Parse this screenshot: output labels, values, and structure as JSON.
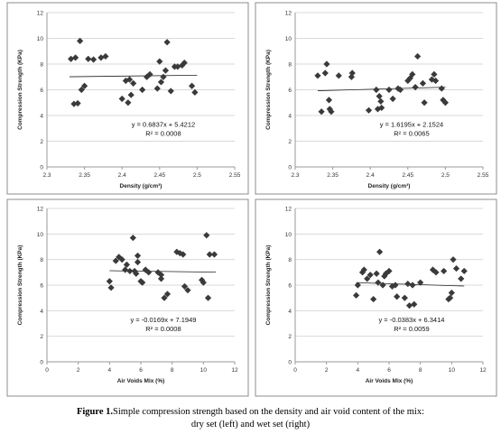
{
  "figure": {
    "caption_label": "Figure 1.",
    "caption_text": "Simple compression strength based on the density and air void content of the mix:",
    "caption_line2": "dry set (left) and wet set (right)"
  },
  "style": {
    "marker_color": "#3a3a3a",
    "trend_color": "#222222",
    "grid_color": "#d9d9d9",
    "border_color": "#8c8c8c"
  },
  "chart_data": [
    {
      "type": "scatter",
      "title": "",
      "xlabel": "Density (g/cm³)",
      "ylabel": "Compression Strength (KPa)",
      "xlim": [
        2.3,
        2.55
      ],
      "ylim": [
        0,
        12
      ],
      "xticks": [
        "2.3",
        "2.35",
        "2.4",
        "2.45",
        "2.5",
        "2.55"
      ],
      "yticks": [
        "0",
        "2",
        "4",
        "6",
        "8",
        "10",
        "12"
      ],
      "grid": true,
      "trend": {
        "slope": 0.6837,
        "intercept": 5.4212,
        "x_range": [
          2.33,
          2.5
        ]
      },
      "equation": "y = 0.6837x + 5.4212",
      "r2": "R² = 0.0008",
      "x": [
        2.332,
        2.336,
        2.338,
        2.341,
        2.344,
        2.346,
        2.35,
        2.355,
        2.362,
        2.372,
        2.378,
        2.4,
        2.405,
        2.408,
        2.41,
        2.412,
        2.415,
        2.427,
        2.433,
        2.437,
        2.447,
        2.45,
        2.452,
        2.455,
        2.458,
        2.46,
        2.465,
        2.47,
        2.474,
        2.48,
        2.483,
        2.493,
        2.497
      ],
      "y": [
        8.4,
        4.9,
        8.5,
        4.95,
        9.8,
        6.0,
        6.3,
        8.4,
        8.35,
        8.5,
        8.6,
        5.3,
        6.7,
        5.0,
        6.8,
        5.6,
        6.5,
        6.0,
        7.0,
        7.2,
        6.1,
        8.2,
        6.6,
        7.0,
        7.5,
        9.7,
        5.9,
        7.8,
        7.8,
        7.9,
        8.1,
        6.3,
        5.8
      ]
    },
    {
      "type": "scatter",
      "title": "",
      "xlabel": "Density (g/cm³)",
      "ylabel": "Compression Strength (KPa)",
      "xlim": [
        2.3,
        2.55
      ],
      "ylim": [
        0,
        12
      ],
      "xticks": [
        "2.3",
        "2.35",
        "2.4",
        "2.45",
        "2.5",
        "2.55"
      ],
      "yticks": [
        "0",
        "2",
        "4",
        "6",
        "8",
        "10",
        "12"
      ],
      "grid": true,
      "trend": {
        "slope": 1.6195,
        "intercept": 2.1524,
        "x_range": [
          2.33,
          2.5
        ]
      },
      "equation": "y = 1.6195x + 2.1524",
      "r2": "R² = 0.0065",
      "x": [
        2.33,
        2.335,
        2.34,
        2.342,
        2.345,
        2.346,
        2.348,
        2.358,
        2.375,
        2.376,
        2.398,
        2.408,
        2.41,
        2.412,
        2.414,
        2.415,
        2.425,
        2.43,
        2.437,
        2.44,
        2.45,
        2.453,
        2.456,
        2.46,
        2.463,
        2.47,
        2.472,
        2.482,
        2.485,
        2.487,
        2.495,
        2.497,
        2.5
      ],
      "y": [
        7.1,
        4.3,
        7.3,
        8.0,
        5.2,
        4.5,
        4.3,
        7.1,
        7.0,
        7.3,
        4.4,
        6.0,
        4.5,
        5.5,
        5.1,
        4.6,
        6.0,
        5.3,
        6.1,
        6.0,
        6.7,
        6.9,
        7.2,
        6.2,
        8.6,
        6.5,
        5.0,
        6.8,
        7.2,
        6.7,
        6.1,
        5.2,
        5.0
      ]
    },
    {
      "type": "scatter",
      "title": "",
      "xlabel": "Air Voids Mix (%)",
      "ylabel": "Compression Strength (KPa)",
      "xlim": [
        0,
        12
      ],
      "ylim": [
        0,
        12
      ],
      "xticks": [
        "0",
        "2",
        "4",
        "6",
        "8",
        "10",
        "12"
      ],
      "yticks": [
        "0",
        "2",
        "4",
        "6",
        "8",
        "10",
        "12"
      ],
      "grid": true,
      "trend": {
        "slope": -0.0169,
        "intercept": 7.1949,
        "x_range": [
          4.0,
          10.8
        ]
      },
      "equation": "y = -0.0169x + 7.1949",
      "r2": "R² = 0.0008",
      "x": [
        4.0,
        4.1,
        4.4,
        4.6,
        4.8,
        5.0,
        5.1,
        5.3,
        5.5,
        5.6,
        5.7,
        5.8,
        5.8,
        6.0,
        6.1,
        6.3,
        6.5,
        7.1,
        7.3,
        7.3,
        7.5,
        7.7,
        8.3,
        8.5,
        8.7,
        8.8,
        9.0,
        9.9,
        10.0,
        10.2,
        10.3,
        10.4,
        10.7
      ],
      "y": [
        6.3,
        5.8,
        7.9,
        8.2,
        8.0,
        7.2,
        7.6,
        7.1,
        9.7,
        7.1,
        6.9,
        7.8,
        8.3,
        6.3,
        6.2,
        7.2,
        7.0,
        7.0,
        6.5,
        6.8,
        5.0,
        5.3,
        8.6,
        8.5,
        8.4,
        5.9,
        5.6,
        6.4,
        6.2,
        9.9,
        5.0,
        8.4,
        8.4
      ]
    },
    {
      "type": "scatter",
      "title": "",
      "xlabel": "Air Voids Mix (%)",
      "ylabel": "Compression Strength (KPa)",
      "xlim": [
        0,
        12
      ],
      "ylim": [
        0,
        12
      ],
      "xticks": [
        "0",
        "2",
        "4",
        "6",
        "8",
        "10",
        "12"
      ],
      "yticks": [
        "0",
        "2",
        "4",
        "6",
        "8",
        "10",
        "12"
      ],
      "grid": true,
      "trend": {
        "slope": -0.0383,
        "intercept": 6.3414,
        "x_range": [
          3.9,
          10.8
        ]
      },
      "equation": "y = -0.0383x + 6.3414",
      "r2": "R² = 0.0059",
      "x": [
        3.9,
        4.0,
        4.3,
        4.4,
        4.6,
        4.8,
        5.0,
        5.2,
        5.3,
        5.4,
        5.6,
        5.7,
        5.8,
        6.0,
        6.2,
        6.4,
        6.5,
        7.0,
        7.2,
        7.3,
        7.5,
        7.6,
        8.0,
        8.8,
        9.0,
        9.5,
        9.8,
        9.9,
        10.0,
        10.1,
        10.3,
        10.6,
        10.8
      ],
      "y": [
        5.2,
        6.0,
        7.0,
        7.2,
        6.5,
        6.8,
        4.9,
        6.9,
        6.2,
        8.6,
        6.0,
        6.7,
        6.9,
        7.1,
        5.9,
        6.0,
        5.1,
        5.0,
        6.1,
        4.4,
        6.0,
        4.5,
        6.2,
        7.2,
        7.0,
        7.1,
        4.9,
        5.0,
        5.4,
        8.0,
        7.3,
        6.5,
        7.1
      ]
    }
  ]
}
